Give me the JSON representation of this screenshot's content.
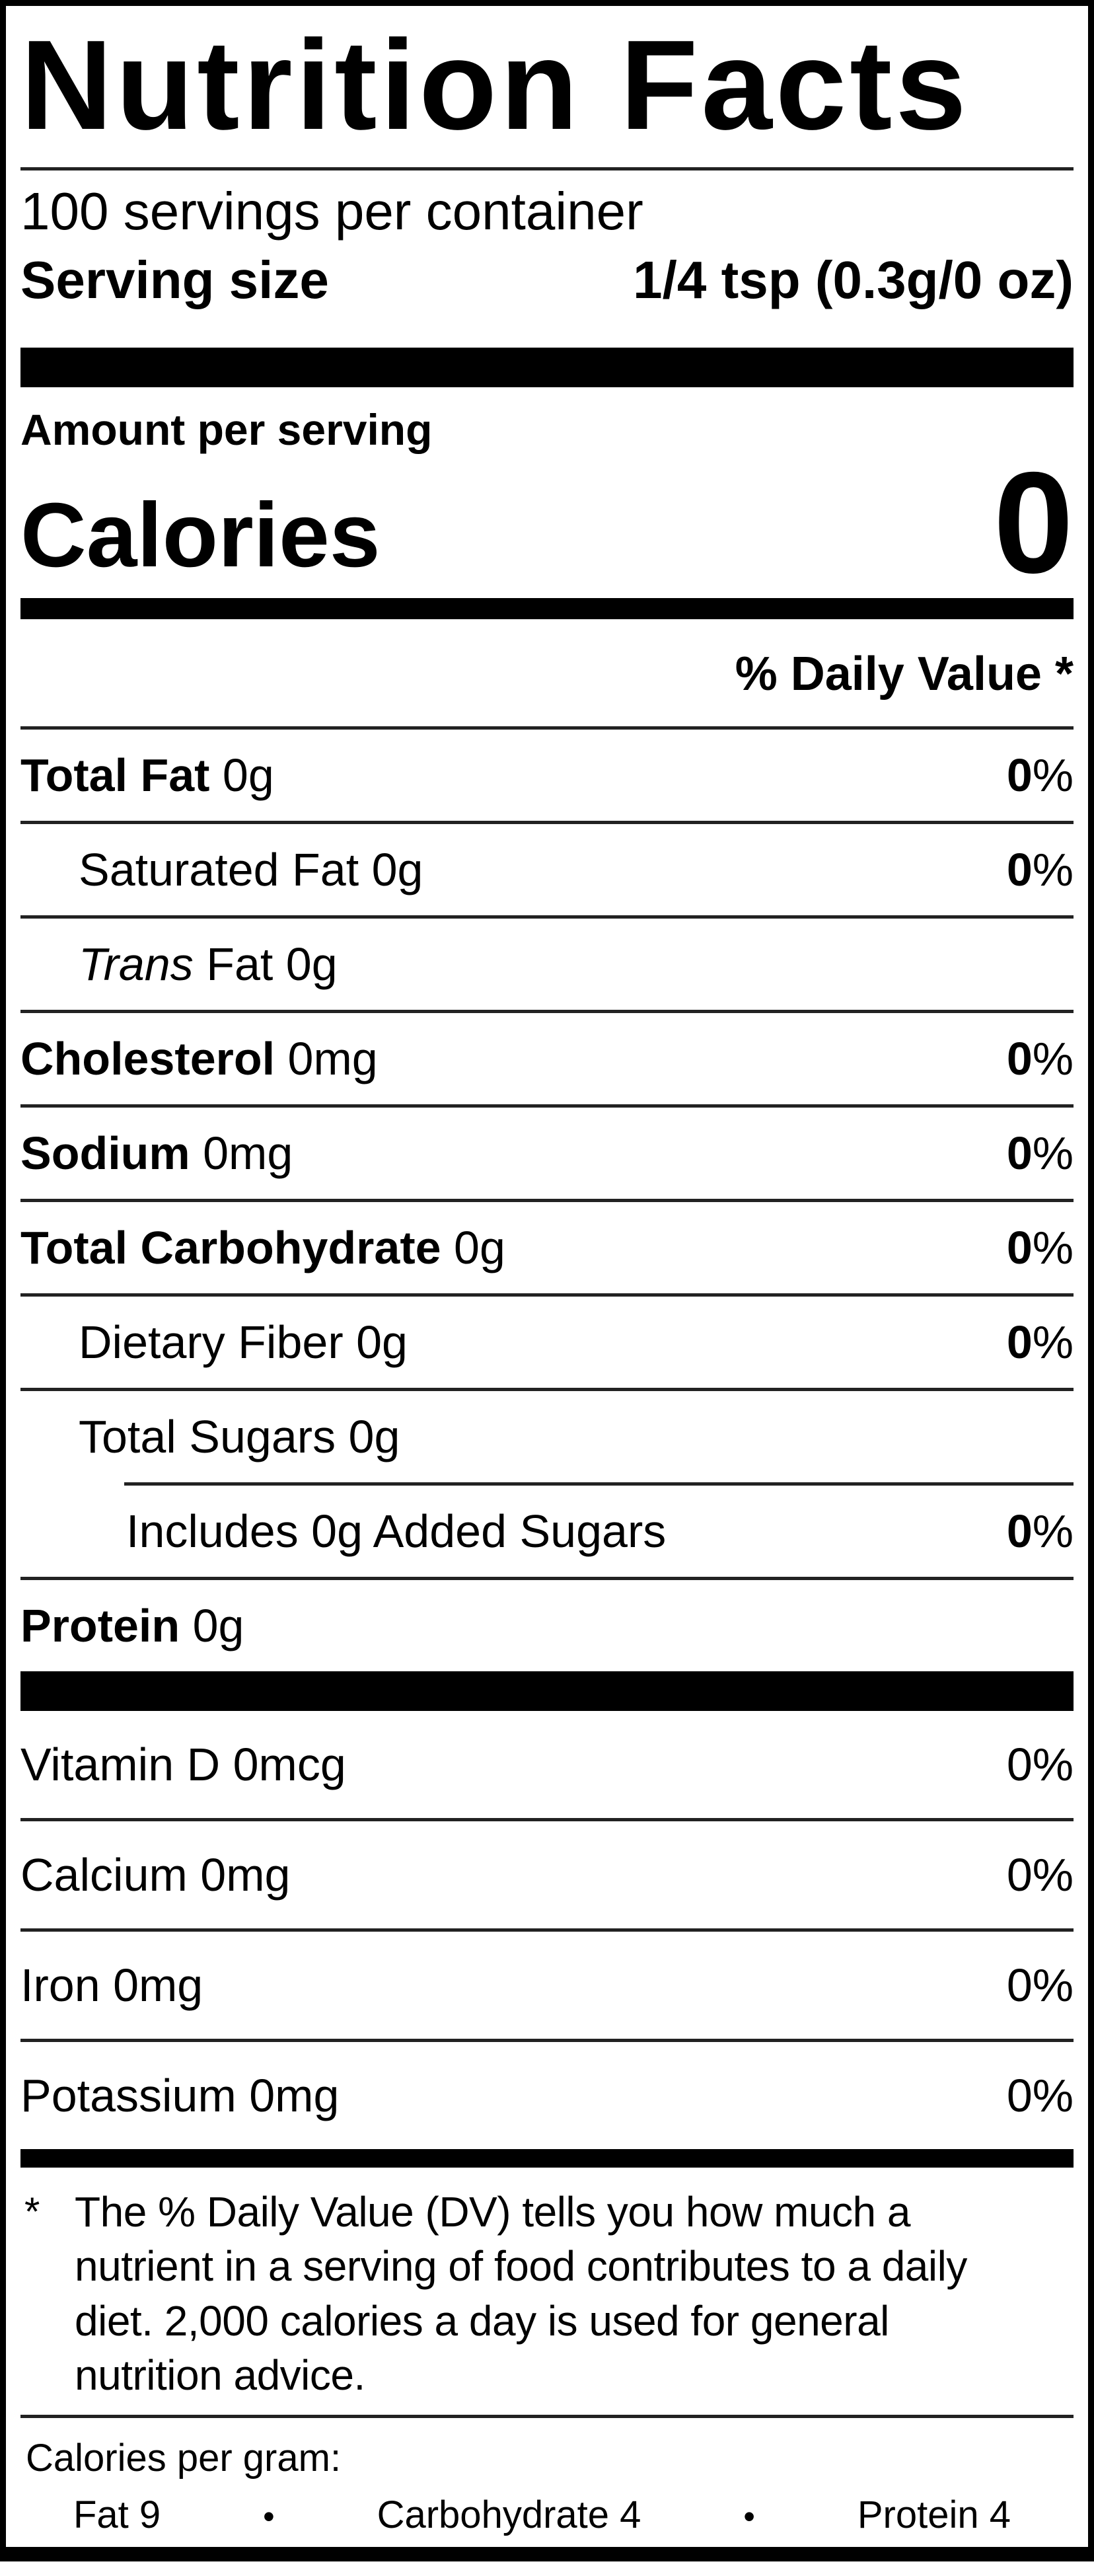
{
  "colors": {
    "ink": "#000000",
    "background": "#ffffff"
  },
  "title": "Nutrition Facts",
  "servings": {
    "per_container": "100 servings per container",
    "serving_size_label": "Serving size",
    "serving_size_value": "1/4 tsp (0.3g/0 oz)"
  },
  "calories": {
    "header": "Amount per serving",
    "label": "Calories",
    "value": "0"
  },
  "daily_value_header": "% Daily Value *",
  "nutrient_rows": [
    {
      "bold": "Total Fat",
      "italic": "",
      "rest": " 0g",
      "dv_num": "0",
      "dv_pct": "%",
      "indent": 0
    },
    {
      "bold": "",
      "italic": "",
      "rest": "Saturated Fat 0g",
      "dv_num": "0",
      "dv_pct": "%",
      "indent": 1
    },
    {
      "bold": "",
      "italic": "Trans",
      "rest": " Fat 0g",
      "dv_num": "",
      "dv_pct": "",
      "indent": 1
    },
    {
      "bold": "Cholesterol",
      "italic": "",
      "rest": " 0mg",
      "dv_num": "0",
      "dv_pct": "%",
      "indent": 0
    },
    {
      "bold": "Sodium",
      "italic": "",
      "rest": " 0mg",
      "dv_num": "0",
      "dv_pct": "%",
      "indent": 0
    },
    {
      "bold": "Total Carbohydrate",
      "italic": "",
      "rest": " 0g",
      "dv_num": "0",
      "dv_pct": "%",
      "indent": 0
    },
    {
      "bold": "",
      "italic": "",
      "rest": "Dietary Fiber 0g",
      "dv_num": "0",
      "dv_pct": "%",
      "indent": 1
    },
    {
      "bold": "",
      "italic": "",
      "rest": "Total Sugars 0g",
      "dv_num": "",
      "dv_pct": "",
      "indent": 1
    },
    {
      "bold": "",
      "italic": "",
      "rest": "Includes 0g Added Sugars",
      "dv_num": "0",
      "dv_pct": "%",
      "indent": 2
    },
    {
      "bold": "Protein",
      "italic": "",
      "rest": " 0g",
      "dv_num": "",
      "dv_pct": "",
      "indent": 0
    }
  ],
  "vitamin_rows": [
    {
      "text": "Vitamin D 0mcg",
      "dv": "0%"
    },
    {
      "text": "Calcium 0mg",
      "dv": "0%"
    },
    {
      "text": "Iron 0mg",
      "dv": "0%"
    },
    {
      "text": "Potassium 0mg",
      "dv": "0%"
    }
  ],
  "footnote": {
    "symbol": "*",
    "text": "The % Daily Value (DV) tells you how much a nutrient in a serving of food contributes to a daily diet. 2,000 calories a day is used for general nutrition advice."
  },
  "calories_per_gram": {
    "label": "Calories per gram:",
    "fat": "Fat 9",
    "carbohydrate": "Carbohydrate 4",
    "protein": "Protein 4",
    "bullet": "•"
  }
}
